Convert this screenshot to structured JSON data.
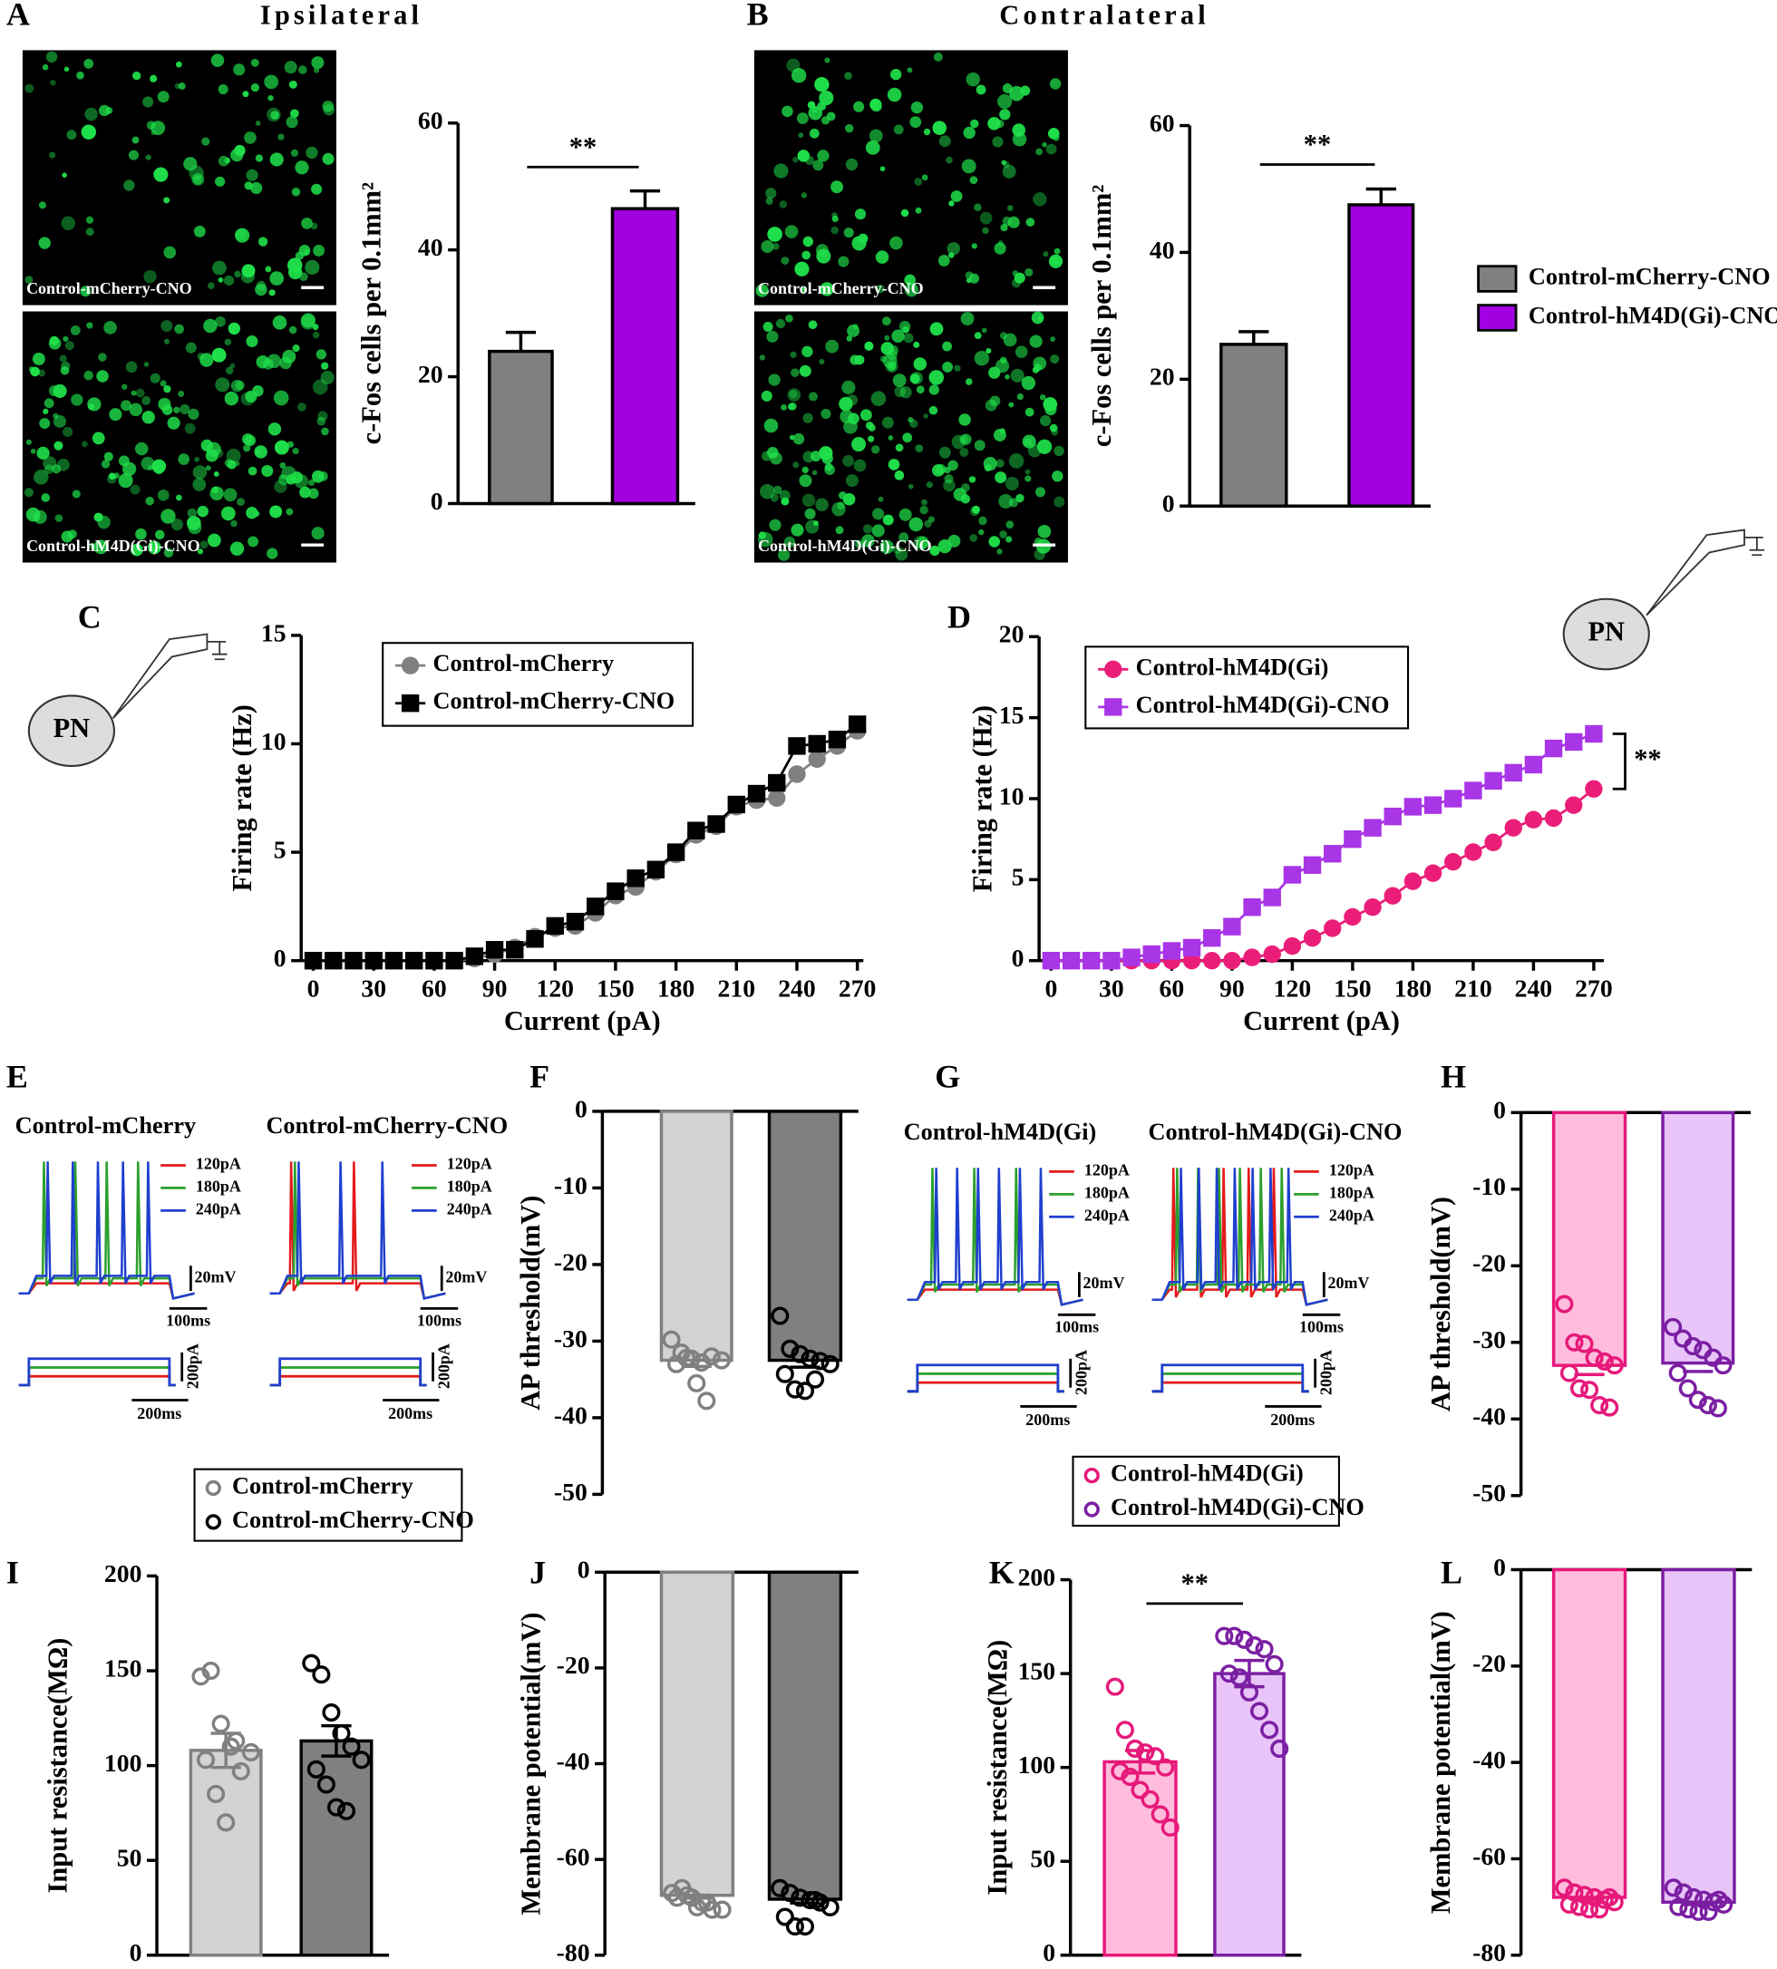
{
  "panel_labels": [
    "A",
    "B",
    "C",
    "D",
    "E",
    "F",
    "G",
    "H",
    "I",
    "J",
    "K",
    "L"
  ],
  "micrographs": [
    "Control-mCherry-CNO",
    "Control-hM4D(Gi)-CNO",
    "Control-mCherry-CNO",
    "Control-hM4D(Gi)-CNO"
  ],
  "cells": [
    "PN",
    "PN"
  ],
  "traces": [
    {
      "groups": [
        {
          "label": "Control-mCherry",
          "steps": [
            "120pA",
            "180pA",
            "240pA"
          ],
          "scale": [
            "20mV",
            "100ms",
            "200pA",
            "200ms"
          ]
        },
        {
          "label": "Control-mCherry-CNO",
          "steps": [
            "120pA",
            "180pA",
            "240pA"
          ],
          "scale": [
            "20mV",
            "100ms",
            "200pA",
            "200ms"
          ]
        }
      ]
    },
    {
      "groups": [
        {
          "label": "Control-hM4D(Gi)",
          "steps": [
            "120pA",
            "180pA",
            "240pA"
          ],
          "scale": [
            "20mV",
            "100ms",
            "200pA",
            "200ms"
          ]
        },
        {
          "label": "Control-hM4D(Gi)-CNO",
          "steps": [
            "120pA",
            "180pA",
            "240pA"
          ],
          "scale": [
            "20mV",
            "100ms",
            "200pA",
            "200ms"
          ]
        }
      ]
    }
  ],
  "chart_data": [
    {
      "type": "bar",
      "title": "Ipsilateral",
      "y_label": "c-Fos cells per 0.1mm²",
      "ylim": [
        0,
        60
      ],
      "yticks": [
        0,
        20,
        40,
        60
      ],
      "annotation": "**",
      "series": [
        {
          "color": "#808080",
          "edge": "#000000",
          "values": [
            24
          ],
          "errors": [
            3
          ]
        },
        {
          "color": "#a100e0",
          "edge": "#000000",
          "values": [
            46.5
          ],
          "errors": [
            2.8
          ]
        }
      ]
    },
    {
      "type": "bar",
      "title": "Contralateral",
      "y_label": "c-Fos cells per 0.1mm²",
      "ylim": [
        0,
        60
      ],
      "yticks": [
        0,
        20,
        40,
        60
      ],
      "annotation": "**",
      "series": [
        {
          "name": "Control-mCherry-CNO",
          "color": "#808080",
          "edge": "#000000",
          "values": [
            25.5
          ],
          "errors": [
            2
          ]
        },
        {
          "name": "Control-hM4D(Gi)-CNO",
          "color": "#a100e0",
          "edge": "#000000",
          "values": [
            47.5
          ],
          "errors": [
            2.5
          ]
        }
      ]
    },
    {
      "type": "line",
      "y_label": "Firing rate (Hz)",
      "x_label": "Current (pA)",
      "xlim": [
        -6,
        273
      ],
      "ylim": [
        0,
        15
      ],
      "xticks": [
        0,
        30,
        60,
        90,
        120,
        150,
        180,
        210,
        240,
        270
      ],
      "yticks": [
        0,
        5,
        10,
        15
      ],
      "x": [
        0,
        10,
        20,
        30,
        40,
        50,
        60,
        70,
        80,
        90,
        100,
        110,
        120,
        130,
        140,
        150,
        160,
        170,
        180,
        190,
        200,
        210,
        220,
        230,
        240,
        250,
        260,
        270
      ],
      "series": [
        {
          "name": "Control-mCherry",
          "color": "#808080",
          "marker": "circle",
          "values": [
            0,
            0,
            0,
            0,
            0,
            0,
            0,
            0,
            0.1,
            0.3,
            0.6,
            1.1,
            1.5,
            1.6,
            2.2,
            3.0,
            3.4,
            4.1,
            4.9,
            5.8,
            6.2,
            7.1,
            7.4,
            7.5,
            8.6,
            9.3,
            9.9,
            10.6
          ]
        },
        {
          "name": "Control-mCherry-CNO",
          "color": "#000000",
          "marker": "square",
          "values": [
            0,
            0,
            0,
            0,
            0,
            0,
            0,
            0,
            0.2,
            0.5,
            0.5,
            1.0,
            1.6,
            1.8,
            2.5,
            3.2,
            3.8,
            4.2,
            5.0,
            6.0,
            6.3,
            7.2,
            7.7,
            8.2,
            9.9,
            10.0,
            10.2,
            10.9
          ]
        }
      ]
    },
    {
      "type": "line",
      "y_label": "Firing rate (Hz)",
      "x_label": "Current (pA)",
      "xlim": [
        -6,
        275
      ],
      "ylim": [
        0,
        20
      ],
      "xticks": [
        0,
        30,
        60,
        90,
        120,
        150,
        180,
        210,
        240,
        270
      ],
      "yticks": [
        0,
        5,
        10,
        15,
        20
      ],
      "annotation": "**",
      "x": [
        0,
        10,
        20,
        30,
        40,
        50,
        60,
        70,
        80,
        90,
        100,
        110,
        120,
        130,
        140,
        150,
        160,
        170,
        180,
        190,
        200,
        210,
        220,
        230,
        240,
        250,
        260,
        270
      ],
      "series": [
        {
          "name": "Control-hM4D(Gi)",
          "color": "#ea1e78",
          "marker": "circle",
          "values": [
            0,
            0,
            0,
            0,
            0,
            0,
            0,
            0,
            0,
            0,
            0.2,
            0.4,
            0.9,
            1.4,
            2.0,
            2.7,
            3.3,
            4.0,
            4.9,
            5.4,
            6.1,
            6.7,
            7.3,
            8.2,
            8.7,
            8.8,
            9.6,
            10.6
          ]
        },
        {
          "name": "Control-hM4D(Gi)-CNO",
          "color": "#a835e6",
          "marker": "square",
          "values": [
            0,
            0,
            0,
            0,
            0.2,
            0.4,
            0.6,
            0.8,
            1.4,
            2.1,
            3.3,
            3.9,
            5.3,
            5.9,
            6.6,
            7.5,
            8.2,
            8.9,
            9.5,
            9.6,
            10.0,
            10.5,
            11.1,
            11.6,
            12.1,
            13.1,
            13.5,
            14.0
          ]
        }
      ]
    },
    {
      "type": "bar",
      "y_label": "AP threshold(mV)",
      "ylim": [
        -50,
        0
      ],
      "yticks": [
        0,
        -10,
        -20,
        -30,
        -40,
        -50
      ],
      "series": [
        {
          "name": "Control-mCherry",
          "color": "#808080",
          "fill": "#d3d3d3",
          "values": [
            -32.5
          ],
          "errors": [
            0.8
          ],
          "points": [
            -29.8,
            -31.5,
            -32.3,
            -32.8,
            -32,
            -32.5,
            -33,
            -32.2,
            -35.5,
            -37.8
          ]
        },
        {
          "name": "Control-mCherry-CNO",
          "color": "#000000",
          "fill": "#808080",
          "values": [
            -32.5
          ],
          "errors": [
            0.9
          ],
          "points": [
            -26.7,
            -31,
            -31.7,
            -32.3,
            -32.6,
            -33,
            -34.3,
            -36.3,
            -36.5,
            -35
          ]
        }
      ]
    },
    {
      "type": "bar",
      "y_label": "AP threshold(mV)",
      "ylim": [
        -50,
        0
      ],
      "yticks": [
        0,
        -10,
        -20,
        -30,
        -40,
        -50
      ],
      "series": [
        {
          "name": "Control-hM4D(Gi)",
          "color": "#e6197a",
          "fill": "#ffbcdc",
          "values": [
            -33
          ],
          "errors": [
            1.2
          ],
          "points": [
            -25,
            -30,
            -30.2,
            -32,
            -32.5,
            -33,
            -34,
            -36,
            -36.2,
            -38.2,
            -38.5
          ]
        },
        {
          "name": "Control-hM4D(Gi)-CNO",
          "color": "#7b1fa2",
          "fill": "#e8c4f8",
          "values": [
            -32.7
          ],
          "errors": [
            1.1
          ],
          "points": [
            -28,
            -29.5,
            -30.5,
            -31,
            -32,
            -33,
            -34,
            -36,
            -37.5,
            -38.2,
            -38.6
          ]
        }
      ]
    },
    {
      "type": "bar",
      "y_label": "Input resistance(MΩ)",
      "ylim": [
        0,
        200
      ],
      "yticks": [
        0,
        50,
        100,
        150,
        200
      ],
      "series": [
        {
          "color": "#808080",
          "fill": "#d3d3d3",
          "values": [
            108
          ],
          "errors": [
            9
          ],
          "points": [
            147,
            150,
            122,
            110,
            97,
            107,
            103,
            85,
            70,
            113
          ]
        },
        {
          "color": "#000000",
          "fill": "#808080",
          "values": [
            113
          ],
          "errors": [
            8
          ],
          "points": [
            154,
            148,
            128,
            117,
            110,
            103,
            98,
            90,
            78,
            76
          ]
        }
      ]
    },
    {
      "type": "bar",
      "y_label": "Membrane potential(mV)",
      "ylim": [
        -80,
        0
      ],
      "yticks": [
        0,
        -20,
        -40,
        -60,
        -80
      ],
      "series": [
        {
          "color": "#808080",
          "fill": "#d3d3d3",
          "values": [
            -67.5
          ],
          "errors": [
            0.6
          ],
          "points": [
            -67,
            -66,
            -68,
            -69,
            -70.5,
            -70.5,
            -68,
            -67.5,
            -70,
            -69
          ]
        },
        {
          "color": "#000000",
          "fill": "#808080",
          "values": [
            -68.3
          ],
          "errors": [
            0.8
          ],
          "points": [
            -66,
            -67,
            -68,
            -68.5,
            -69,
            -70,
            -72,
            -74,
            -74,
            -68.5
          ]
        }
      ]
    },
    {
      "type": "bar",
      "y_label": "Input resistance(MΩ)",
      "ylim": [
        0,
        200
      ],
      "yticks": [
        0,
        50,
        100,
        150,
        200
      ],
      "annotation": "**",
      "series": [
        {
          "color": "#e6197a",
          "fill": "#ffbcdc",
          "values": [
            103
          ],
          "errors": [
            6
          ],
          "points": [
            143,
            120,
            110,
            108,
            106,
            100,
            98,
            95,
            88,
            83,
            75,
            68
          ]
        },
        {
          "color": "#7b1fa2",
          "fill": "#e8c4f8",
          "values": [
            150
          ],
          "errors": [
            7
          ],
          "points": [
            170,
            170,
            168,
            165,
            163,
            155,
            150,
            148,
            140,
            130,
            120,
            110
          ]
        }
      ]
    },
    {
      "type": "bar",
      "y_label": "Membrane potential(mV)",
      "ylim": [
        -80,
        0
      ],
      "yticks": [
        0,
        -20,
        -40,
        -60,
        -80
      ],
      "series": [
        {
          "color": "#e6197a",
          "fill": "#ffbcdc",
          "values": [
            -68
          ],
          "errors": [
            0.5
          ],
          "points": [
            -66,
            -67,
            -67.5,
            -68,
            -68.5,
            -69,
            -69.5,
            -70,
            -70.5,
            -70.5,
            -68
          ]
        },
        {
          "color": "#7b1fa2",
          "fill": "#e8c4f8",
          "values": [
            -69
          ],
          "errors": [
            0.5
          ],
          "points": [
            -66,
            -67,
            -68,
            -68.5,
            -69,
            -69.5,
            -70,
            -70.5,
            -71,
            -71,
            -68.5
          ]
        }
      ]
    }
  ]
}
